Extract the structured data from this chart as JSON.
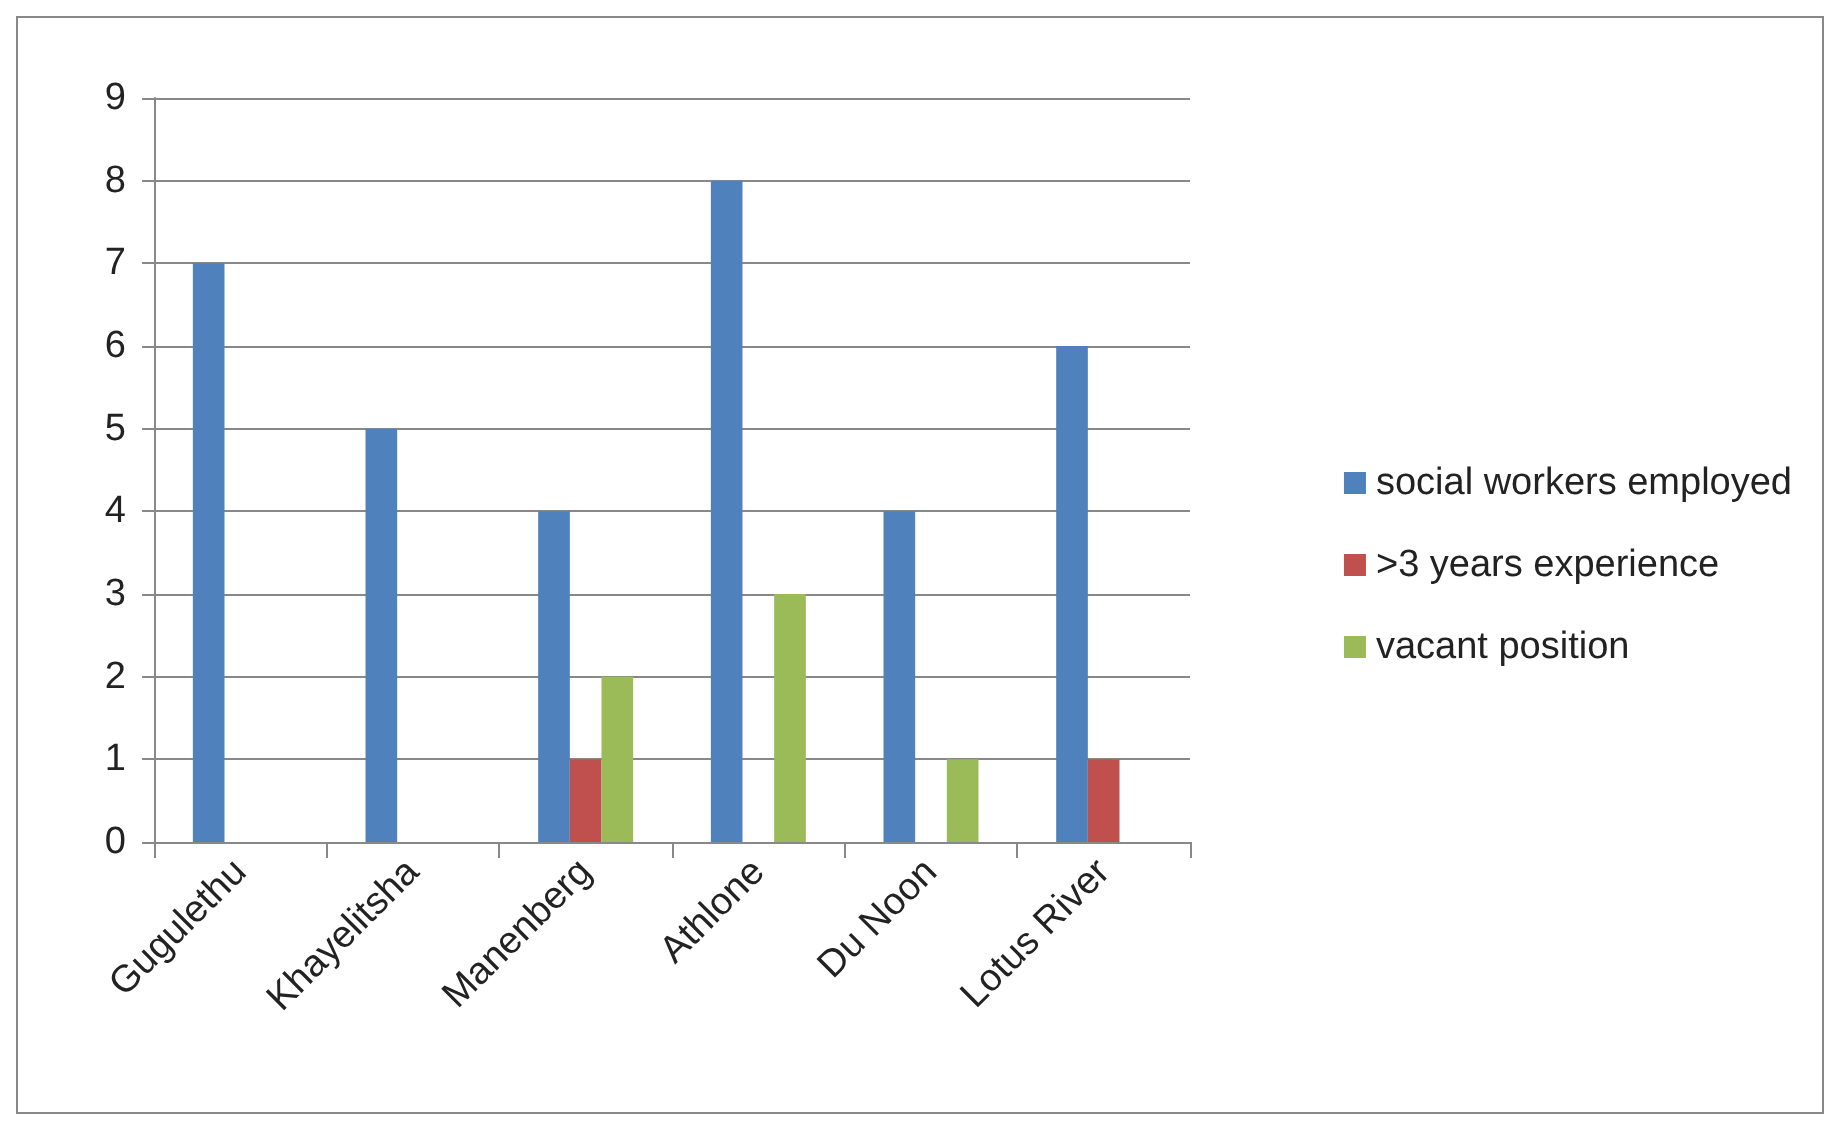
{
  "chart_data": {
    "type": "bar",
    "categories": [
      "Gugulethu",
      "Khayelitsha",
      "Manenberg",
      "Athlone",
      "Du Noon",
      "Lotus River"
    ],
    "series": [
      {
        "name": "social workers employed",
        "color": "#4f81bd",
        "values": [
          7,
          5,
          4,
          8,
          4,
          6
        ]
      },
      {
        "name": ">3 years experience",
        "color": "#c0504d",
        "values": [
          0,
          0,
          1,
          0,
          0,
          1
        ]
      },
      {
        "name": "vacant position",
        "color": "#9bbb59",
        "values": [
          0,
          0,
          2,
          3,
          1,
          0
        ]
      }
    ],
    "ylim": [
      0,
      9
    ],
    "yticks": [
      0,
      1,
      2,
      3,
      4,
      5,
      6,
      7,
      8,
      9
    ],
    "grid": "y",
    "legend": "right"
  }
}
